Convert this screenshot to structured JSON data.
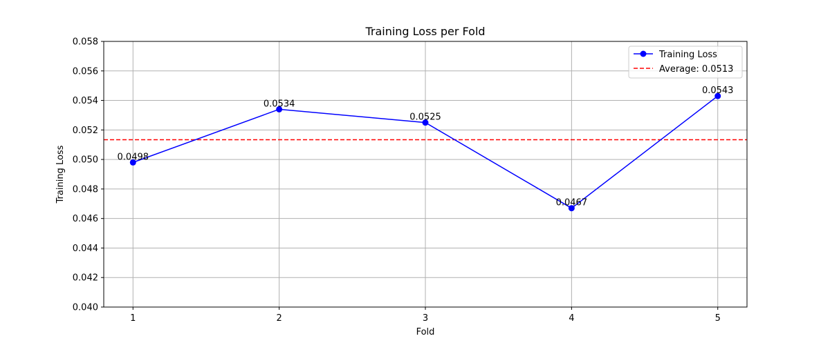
{
  "chart_data": {
    "type": "line",
    "title": "Training Loss per Fold",
    "xlabel": "Fold",
    "ylabel": "Training Loss",
    "x": [
      1,
      2,
      3,
      4,
      5
    ],
    "xlim": [
      0.8,
      5.2
    ],
    "ylim": [
      0.04,
      0.058
    ],
    "yticks": [
      0.04,
      0.042,
      0.044,
      0.046,
      0.048,
      0.05,
      0.052,
      0.054,
      0.056,
      0.058
    ],
    "ytick_labels": [
      "0.040",
      "0.042",
      "0.044",
      "0.046",
      "0.048",
      "0.050",
      "0.052",
      "0.054",
      "0.056",
      "0.058"
    ],
    "xtick_labels": [
      "1",
      "2",
      "3",
      "4",
      "5"
    ],
    "series": [
      {
        "name": "Training Loss",
        "values": [
          0.0498,
          0.0534,
          0.0525,
          0.0467,
          0.0543
        ],
        "value_labels": [
          "0.0498",
          "0.0534",
          "0.0525",
          "0.0467",
          "0.0543"
        ],
        "color": "#0000ff",
        "marker": "circle"
      }
    ],
    "reference_lines": [
      {
        "name": "Average: 0.0513",
        "y": 0.05134,
        "color": "#ff0000",
        "style": "dashed"
      }
    ],
    "grid": true,
    "legend": {
      "position": "top-right"
    }
  }
}
